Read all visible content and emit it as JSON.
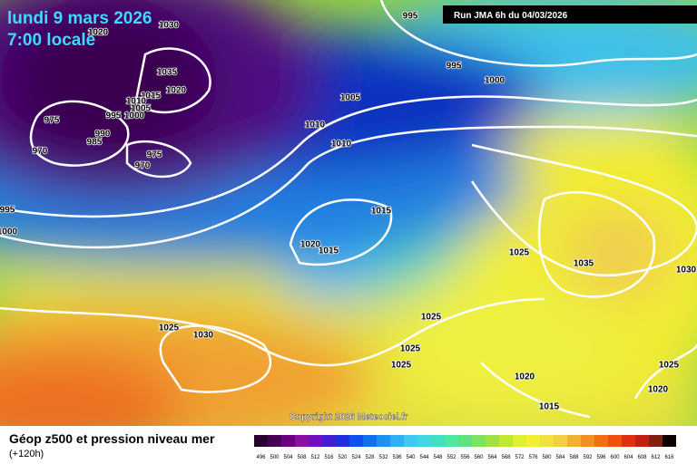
{
  "header": {
    "date": "lundi 9 mars 2026",
    "time": "7:00 locale",
    "run": "Run JMA 6h du 04/03/2026"
  },
  "map": {
    "copyright": "Copyright 2026 Meteociel.fr",
    "isobar_labels": [
      "995",
      "1030",
      "1020",
      "1035",
      "1020",
      "1015",
      "1010",
      "1005",
      "1000",
      "995",
      "975",
      "990",
      "985",
      "970",
      "975",
      "970",
      "995",
      "1000",
      "995",
      "1000",
      "1005",
      "1010",
      "1010",
      "1015",
      "1020",
      "1015",
      "1025",
      "1035",
      "1030",
      "1025",
      "1030",
      "1025",
      "1025",
      "1025",
      "1020",
      "1015",
      "1025",
      "1020"
    ]
  },
  "footer": {
    "title": "Géop z500 et pression niveau mer",
    "lead": "(+120h)",
    "scale_labels": [
      "496",
      "500",
      "504",
      "508",
      "512",
      "516",
      "520",
      "524",
      "528",
      "532",
      "536",
      "540",
      "544",
      "548",
      "552",
      "556",
      "560",
      "564",
      "568",
      "572",
      "576",
      "580",
      "584",
      "588",
      "592",
      "596",
      "600",
      "604",
      "608",
      "612",
      "616"
    ]
  }
}
